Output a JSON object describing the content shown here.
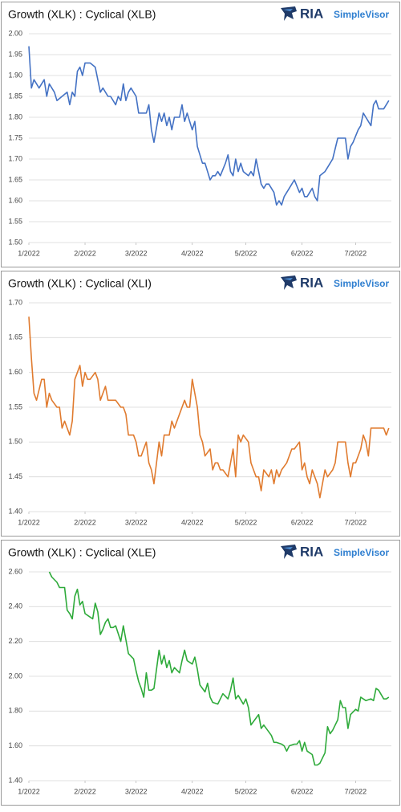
{
  "chart_data": [
    {
      "type": "line",
      "title": "Growth (XLK) : Cyclical (XLB)",
      "brand": "RIA",
      "brand_product": "SimpleVisor",
      "color": "#4472c4",
      "grid": true,
      "xlim": [
        0,
        142
      ],
      "xticks": [
        {
          "value": 0,
          "label": "1/2022"
        },
        {
          "value": 22,
          "label": "2/2022"
        },
        {
          "value": 42,
          "label": "3/2022"
        },
        {
          "value": 64,
          "label": "4/2022"
        },
        {
          "value": 85,
          "label": "5/2022"
        },
        {
          "value": 107,
          "label": "6/2022"
        },
        {
          "value": 128,
          "label": "7/2022"
        }
      ],
      "ylim": [
        1.5,
        2.0
      ],
      "yticks": [
        {
          "value": 1.5,
          "label": "1.50"
        },
        1.55,
        {
          "value": 1.6,
          "label": "1.60"
        },
        1.65,
        {
          "value": 1.7,
          "label": "1.70"
        },
        1.75,
        {
          "value": 1.8,
          "label": "1.80"
        },
        1.85,
        {
          "value": 1.9,
          "label": "1.90"
        },
        1.95,
        {
          "value": 2.0,
          "label": "2.00"
        }
      ],
      "x": [
        0,
        1,
        2,
        4,
        6,
        7,
        8,
        10,
        11,
        13,
        15,
        16,
        17,
        18,
        19,
        20,
        21,
        22,
        24,
        26,
        27,
        28,
        29,
        31,
        32,
        34,
        35,
        36,
        37,
        38,
        39,
        40,
        42,
        43,
        45,
        46,
        47,
        48,
        49,
        51,
        52,
        53,
        54,
        55,
        56,
        57,
        59,
        60,
        61,
        62,
        64,
        65,
        66,
        67,
        68,
        69,
        71,
        72,
        73,
        74,
        75,
        77,
        78,
        79,
        80,
        81,
        82,
        83,
        84,
        86,
        87,
        88,
        89,
        91,
        92,
        93,
        94,
        96,
        97,
        98,
        99,
        100,
        102,
        103,
        104,
        106,
        107,
        108,
        109,
        111,
        112,
        113,
        114,
        116,
        117,
        118,
        119,
        121,
        122,
        124,
        125,
        126,
        127,
        129,
        130,
        131,
        132,
        134,
        135,
        136,
        137,
        139,
        141
      ],
      "values": [
        1.97,
        1.87,
        1.89,
        1.87,
        1.89,
        1.85,
        1.88,
        1.86,
        1.84,
        1.85,
        1.86,
        1.83,
        1.86,
        1.85,
        1.91,
        1.92,
        1.9,
        1.93,
        1.93,
        1.92,
        1.89,
        1.86,
        1.87,
        1.85,
        1.85,
        1.83,
        1.85,
        1.84,
        1.88,
        1.84,
        1.86,
        1.87,
        1.85,
        1.81,
        1.81,
        1.81,
        1.83,
        1.77,
        1.74,
        1.81,
        1.79,
        1.81,
        1.78,
        1.8,
        1.77,
        1.8,
        1.8,
        1.83,
        1.79,
        1.81,
        1.77,
        1.79,
        1.73,
        1.71,
        1.69,
        1.69,
        1.65,
        1.66,
        1.66,
        1.67,
        1.66,
        1.69,
        1.71,
        1.67,
        1.66,
        1.7,
        1.67,
        1.69,
        1.67,
        1.66,
        1.67,
        1.66,
        1.7,
        1.64,
        1.63,
        1.64,
        1.64,
        1.62,
        1.59,
        1.6,
        1.59,
        1.61,
        1.63,
        1.64,
        1.65,
        1.62,
        1.63,
        1.61,
        1.61,
        1.63,
        1.61,
        1.6,
        1.66,
        1.67,
        1.68,
        1.69,
        1.7,
        1.75,
        1.75,
        1.75,
        1.7,
        1.73,
        1.74,
        1.77,
        1.78,
        1.81,
        1.8,
        1.78,
        1.83,
        1.84,
        1.82,
        1.82,
        1.84
      ]
    },
    {
      "type": "line",
      "title": "Growth (XLK) : Cyclical (XLI)",
      "brand": "RIA",
      "brand_product": "SimpleVisor",
      "color": "#e07b2f",
      "grid": true,
      "xlim": [
        0,
        142
      ],
      "xticks": [
        {
          "value": 0,
          "label": "1/2022"
        },
        {
          "value": 22,
          "label": "2/2022"
        },
        {
          "value": 42,
          "label": "3/2022"
        },
        {
          "value": 64,
          "label": "4/2022"
        },
        {
          "value": 85,
          "label": "5/2022"
        },
        {
          "value": 107,
          "label": "6/2022"
        },
        {
          "value": 128,
          "label": "7/2022"
        }
      ],
      "ylim": [
        1.4,
        1.7
      ],
      "yticks": [
        {
          "value": 1.4,
          "label": "1.40"
        },
        1.45,
        {
          "value": 1.5,
          "label": "1.50"
        },
        1.55,
        {
          "value": 1.6,
          "label": "1.60"
        },
        1.65,
        {
          "value": 1.7,
          "label": "1.70"
        }
      ],
      "x": [
        0,
        1,
        2,
        3,
        5,
        6,
        7,
        8,
        9,
        11,
        12,
        13,
        14,
        15,
        16,
        17,
        18,
        19,
        20,
        21,
        22,
        23,
        24,
        26,
        27,
        28,
        29,
        30,
        31,
        33,
        34,
        36,
        37,
        38,
        39,
        41,
        42,
        43,
        44,
        46,
        47,
        48,
        49,
        51,
        52,
        53,
        54,
        55,
        56,
        57,
        59,
        60,
        61,
        62,
        63,
        64,
        66,
        67,
        68,
        69,
        71,
        72,
        73,
        74,
        75,
        76,
        78,
        79,
        80,
        81,
        82,
        83,
        84,
        86,
        87,
        88,
        89,
        90,
        91,
        92,
        94,
        95,
        96,
        97,
        98,
        99,
        101,
        102,
        103,
        104,
        106,
        107,
        108,
        109,
        110,
        111,
        113,
        114,
        115,
        116,
        117,
        119,
        120,
        121,
        122,
        124,
        125,
        126,
        127,
        128,
        130,
        131,
        132,
        133,
        134,
        136,
        137,
        139,
        140,
        141
      ],
      "values": [
        1.68,
        1.62,
        1.57,
        1.56,
        1.59,
        1.59,
        1.55,
        1.57,
        1.56,
        1.55,
        1.55,
        1.52,
        1.53,
        1.52,
        1.51,
        1.53,
        1.59,
        1.6,
        1.61,
        1.58,
        1.6,
        1.59,
        1.59,
        1.6,
        1.59,
        1.56,
        1.57,
        1.58,
        1.56,
        1.56,
        1.56,
        1.55,
        1.55,
        1.54,
        1.51,
        1.51,
        1.5,
        1.48,
        1.48,
        1.5,
        1.47,
        1.46,
        1.44,
        1.5,
        1.48,
        1.51,
        1.51,
        1.51,
        1.53,
        1.52,
        1.54,
        1.55,
        1.56,
        1.55,
        1.55,
        1.59,
        1.55,
        1.51,
        1.5,
        1.48,
        1.49,
        1.46,
        1.47,
        1.47,
        1.46,
        1.46,
        1.45,
        1.47,
        1.49,
        1.45,
        1.51,
        1.5,
        1.51,
        1.5,
        1.47,
        1.46,
        1.45,
        1.45,
        1.43,
        1.46,
        1.45,
        1.46,
        1.44,
        1.46,
        1.45,
        1.46,
        1.47,
        1.48,
        1.49,
        1.49,
        1.5,
        1.46,
        1.47,
        1.45,
        1.44,
        1.46,
        1.44,
        1.42,
        1.44,
        1.46,
        1.45,
        1.46,
        1.47,
        1.5,
        1.5,
        1.5,
        1.47,
        1.45,
        1.47,
        1.47,
        1.49,
        1.51,
        1.5,
        1.48,
        1.52,
        1.52,
        1.52,
        1.52,
        1.51,
        1.52
      ]
    },
    {
      "type": "line",
      "title": "Growth (XLK) : Cyclical (XLE)",
      "brand": "RIA",
      "brand_product": "SimpleVisor",
      "color": "#2eaa3a",
      "grid": true,
      "xlim": [
        0,
        142
      ],
      "xticks": [
        {
          "value": 0,
          "label": "1/2022"
        },
        {
          "value": 22,
          "label": "2/2022"
        },
        {
          "value": 42,
          "label": "3/2022"
        },
        {
          "value": 64,
          "label": "4/2022"
        },
        {
          "value": 85,
          "label": "5/2022"
        },
        {
          "value": 107,
          "label": "6/2022"
        },
        {
          "value": 128,
          "label": "7/2022"
        }
      ],
      "ylim": [
        1.4,
        2.6
      ],
      "yticks": [
        {
          "value": 1.4,
          "label": "1.40"
        },
        {
          "value": 1.6,
          "label": "1.60"
        },
        {
          "value": 1.8,
          "label": "1.80"
        },
        {
          "value": 2.0,
          "label": "2.00"
        },
        {
          "value": 2.2,
          "label": "2.20"
        },
        {
          "value": 2.4,
          "label": "2.40"
        },
        {
          "value": 2.6,
          "label": "2.60"
        }
      ],
      "x": [
        8,
        9,
        11,
        12,
        13,
        14,
        15,
        16,
        17,
        18,
        19,
        20,
        21,
        22,
        24,
        25,
        26,
        27,
        28,
        29,
        30,
        31,
        32,
        33,
        34,
        36,
        37,
        38,
        39,
        41,
        42,
        43,
        44,
        45,
        46,
        47,
        48,
        49,
        51,
        52,
        53,
        54,
        55,
        56,
        57,
        59,
        60,
        61,
        62,
        64,
        65,
        66,
        67,
        69,
        70,
        71,
        72,
        74,
        75,
        76,
        78,
        79,
        80,
        81,
        82,
        84,
        85,
        86,
        87,
        89,
        90,
        91,
        92,
        94,
        95,
        96,
        97,
        99,
        100,
        101,
        102,
        104,
        105,
        106,
        107,
        108,
        109,
        111,
        112,
        113,
        114,
        116,
        117,
        118,
        119,
        121,
        122,
        123,
        124,
        125,
        126,
        128,
        129,
        130,
        131,
        132,
        134,
        135,
        136,
        137,
        139,
        140,
        141
      ],
      "values": [
        2.6,
        2.57,
        2.54,
        2.51,
        2.51,
        2.51,
        2.38,
        2.36,
        2.33,
        2.46,
        2.5,
        2.41,
        2.43,
        2.36,
        2.34,
        2.33,
        2.42,
        2.37,
        2.24,
        2.27,
        2.31,
        2.33,
        2.28,
        2.28,
        2.29,
        2.2,
        2.29,
        2.21,
        2.13,
        2.1,
        2.03,
        1.97,
        1.93,
        1.88,
        2.02,
        1.92,
        1.92,
        1.93,
        2.15,
        2.07,
        2.12,
        2.05,
        2.09,
        2.02,
        2.05,
        2.02,
        2.09,
        2.15,
        2.09,
        2.07,
        2.11,
        2.04,
        1.95,
        1.91,
        1.96,
        1.88,
        1.85,
        1.84,
        1.87,
        1.9,
        1.87,
        1.92,
        1.99,
        1.87,
        1.89,
        1.84,
        1.87,
        1.82,
        1.72,
        1.76,
        1.78,
        1.7,
        1.72,
        1.68,
        1.66,
        1.62,
        1.62,
        1.61,
        1.6,
        1.57,
        1.6,
        1.61,
        1.61,
        1.63,
        1.57,
        1.62,
        1.57,
        1.55,
        1.49,
        1.49,
        1.5,
        1.56,
        1.71,
        1.67,
        1.69,
        1.75,
        1.86,
        1.82,
        1.82,
        1.7,
        1.78,
        1.81,
        1.8,
        1.88,
        1.87,
        1.86,
        1.87,
        1.86,
        1.93,
        1.92,
        1.87,
        1.87,
        1.88
      ]
    }
  ]
}
